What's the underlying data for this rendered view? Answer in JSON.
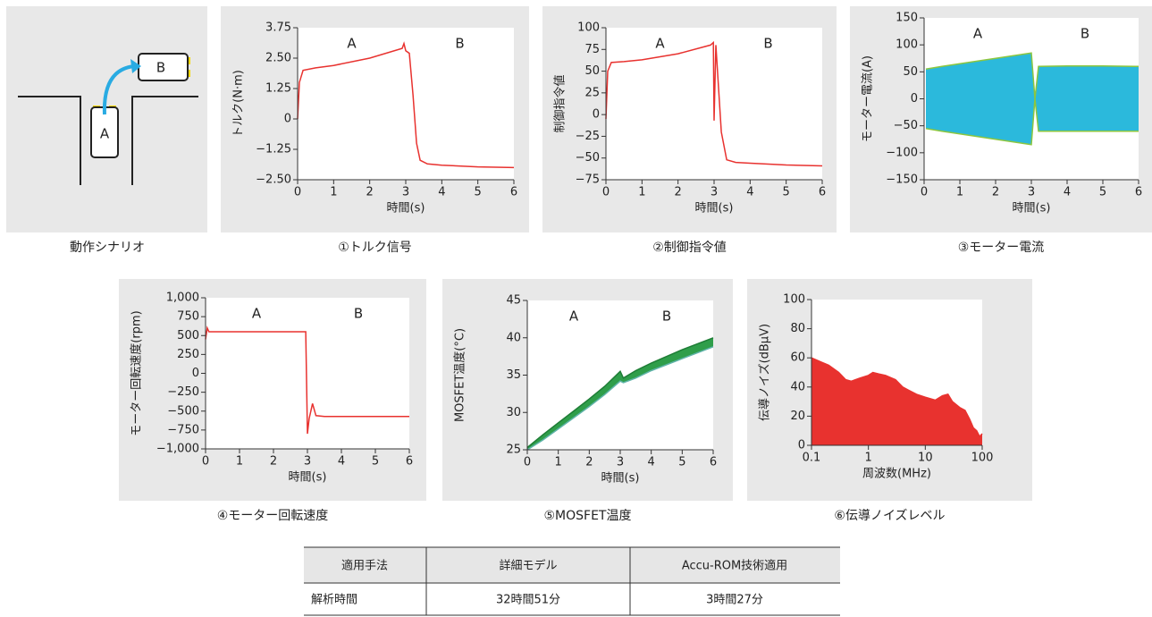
{
  "scenario": {
    "caption": "動作シナリオ",
    "labels": [
      "A",
      "B"
    ]
  },
  "chart_data": [
    {
      "type": "line",
      "caption": "①トルク信号",
      "xlabel": "時間(s)",
      "ylabel": "トルク(N·m)",
      "annotations": [
        "A",
        "B"
      ],
      "xlim": [
        0,
        6
      ],
      "xticks": [
        0,
        1,
        2,
        3,
        4,
        5,
        6
      ],
      "ylim": [
        -2.5,
        3.75
      ],
      "yticks": [
        {
          "value": -2.5,
          "label": "−2.50"
        },
        {
          "value": -1.25,
          "label": "−1.25"
        },
        0,
        1.25,
        {
          "value": 2.5,
          "label": "2.50"
        },
        3.75
      ],
      "x": [
        0,
        0.05,
        0.15,
        0.5,
        1,
        2,
        2.9,
        2.95,
        3.0,
        3.1,
        3.2,
        3.3,
        3.4,
        3.6,
        4,
        5,
        6
      ],
      "series": [
        {
          "color": "#e8322f",
          "values": [
            0,
            1.5,
            2.0,
            2.1,
            2.2,
            2.5,
            2.9,
            3.1,
            2.8,
            2.7,
            1.0,
            -1.0,
            -1.7,
            -1.85,
            -1.9,
            -1.97,
            -2.0
          ]
        }
      ]
    },
    {
      "type": "line",
      "caption": "②制御指令値",
      "xlabel": "時間(s)",
      "ylabel": "制御指令値",
      "annotations": [
        "A",
        "B"
      ],
      "xlim": [
        0,
        6
      ],
      "xticks": [
        0,
        1,
        2,
        3,
        4,
        5,
        6
      ],
      "ylim": [
        -75,
        100
      ],
      "yticks": [
        {
          "value": -75,
          "label": "−75"
        },
        {
          "value": -50,
          "label": "−50"
        },
        {
          "value": -25,
          "label": "−25"
        },
        0,
        25,
        50,
        75,
        100
      ],
      "x": [
        0,
        0.05,
        0.15,
        0.5,
        1,
        2,
        2.9,
        2.98,
        3.0,
        3.05,
        3.2,
        3.35,
        3.6,
        4,
        5,
        6
      ],
      "series": [
        {
          "color": "#e8322f",
          "values": [
            -5,
            50,
            60,
            61,
            63,
            70,
            80,
            83,
            -7,
            80,
            -20,
            -52,
            -55,
            -56,
            -58,
            -59
          ]
        }
      ]
    },
    {
      "type": "band",
      "caption": "③モーター電流",
      "xlabel": "時間(s)",
      "ylabel": "モーター電流(A)",
      "annotations": [
        "A",
        "B"
      ],
      "fill": "#2bb9dc",
      "xlim": [
        0,
        6
      ],
      "xticks": [
        0,
        1,
        2,
        3,
        4,
        5,
        6
      ],
      "ylim": [
        -150,
        150
      ],
      "yticks": [
        {
          "value": -150,
          "label": "−150"
        },
        {
          "value": -100,
          "label": "−100"
        },
        {
          "value": -50,
          "label": "−50"
        },
        0,
        50,
        100,
        150
      ],
      "x": [
        0.05,
        0.5,
        1,
        1.5,
        2,
        2.5,
        3,
        3.1,
        3.2,
        4,
        5,
        6
      ],
      "series": [
        {
          "color": "#8cc63f",
          "values": [
            55,
            60,
            65,
            70,
            75,
            80,
            85,
            0,
            60,
            61,
            61,
            60
          ]
        },
        {
          "color": "#8cc63f",
          "values": [
            -55,
            -60,
            -65,
            -70,
            -75,
            -80,
            -85,
            0,
            -60,
            -60,
            -60,
            -60
          ]
        }
      ]
    },
    {
      "type": "line",
      "caption": "④モーター回転速度",
      "xlabel": "時間(s)",
      "ylabel": "モーター回転速度(rpm)",
      "annotations": [
        "A",
        "B"
      ],
      "xlim": [
        0,
        6
      ],
      "xticks": [
        0,
        1,
        2,
        3,
        4,
        5,
        6
      ],
      "ylim": [
        -1000,
        1000
      ],
      "yticks": [
        {
          "value": -1000,
          "label": "−1,000"
        },
        {
          "value": -750,
          "label": "−750"
        },
        {
          "value": -500,
          "label": "−500"
        },
        {
          "value": -250,
          "label": "−250"
        },
        0,
        250,
        500,
        750,
        {
          "value": 1000,
          "label": "1,000"
        }
      ],
      "x": [
        0,
        0.05,
        0.1,
        2.95,
        3.0,
        3.05,
        3.15,
        3.25,
        3.5,
        6
      ],
      "series": [
        {
          "color": "#e8322f",
          "values": [
            450,
            600,
            550,
            550,
            -800,
            -600,
            -400,
            -560,
            -570,
            -570
          ]
        }
      ]
    },
    {
      "type": "band",
      "caption": "⑤MOSFET温度",
      "xlabel": "時間(s)",
      "ylabel": "MOSFET温度(°C)",
      "annotations": [
        "A",
        "B"
      ],
      "fill": "#2f9e4a",
      "xlim": [
        0,
        6
      ],
      "xticks": [
        0,
        1,
        2,
        3,
        4,
        5,
        6
      ],
      "ylim": [
        25,
        45
      ],
      "yticks": [
        25,
        30,
        35,
        40,
        45
      ],
      "x": [
        0,
        0.5,
        1,
        1.5,
        2,
        2.5,
        3,
        3.1,
        3.5,
        4,
        5,
        6
      ],
      "series": [
        {
          "color": "#1e7d36",
          "values": [
            25.3,
            27,
            28.6,
            30.2,
            31.8,
            33.5,
            35.5,
            34.6,
            35.6,
            36.6,
            38.4,
            40
          ]
        },
        {
          "color": "#5fb3a8",
          "values": [
            25,
            26.3,
            27.8,
            29.3,
            30.8,
            32.4,
            34.2,
            34,
            34.6,
            35.6,
            37.2,
            38.8
          ]
        }
      ]
    },
    {
      "type": "area",
      "caption": "⑥伝導ノイズレベル",
      "xlabel": "周波数(MHz)",
      "ylabel": "伝導ノイズ(dBμV)",
      "xscale": "log",
      "xlim": [
        0.1,
        100
      ],
      "xticks": [
        0.1,
        1,
        10,
        100
      ],
      "ylim": [
        0,
        100
      ],
      "yticks": [
        0,
        20,
        40,
        60,
        80,
        100
      ],
      "x": [
        0.1,
        0.15,
        0.2,
        0.3,
        0.4,
        0.5,
        0.7,
        1,
        1.2,
        1.5,
        2,
        3,
        4,
        5,
        7,
        10,
        15,
        20,
        25,
        30,
        40,
        50,
        60,
        70,
        80,
        90,
        100
      ],
      "series": [
        {
          "color": "#e8322f",
          "values": [
            60,
            57,
            55,
            50,
            45,
            44,
            46,
            48,
            50,
            49,
            48,
            45,
            40,
            38,
            35,
            33,
            31,
            34,
            35,
            30,
            26,
            24,
            18,
            12,
            10,
            6,
            8
          ]
        }
      ]
    }
  ],
  "table": {
    "header": [
      "適用手法",
      "詳細モデル",
      "Accu-ROM技術適用"
    ],
    "rows": [
      [
        "解析時間",
        "32時間51分",
        "3時間27分"
      ]
    ]
  }
}
